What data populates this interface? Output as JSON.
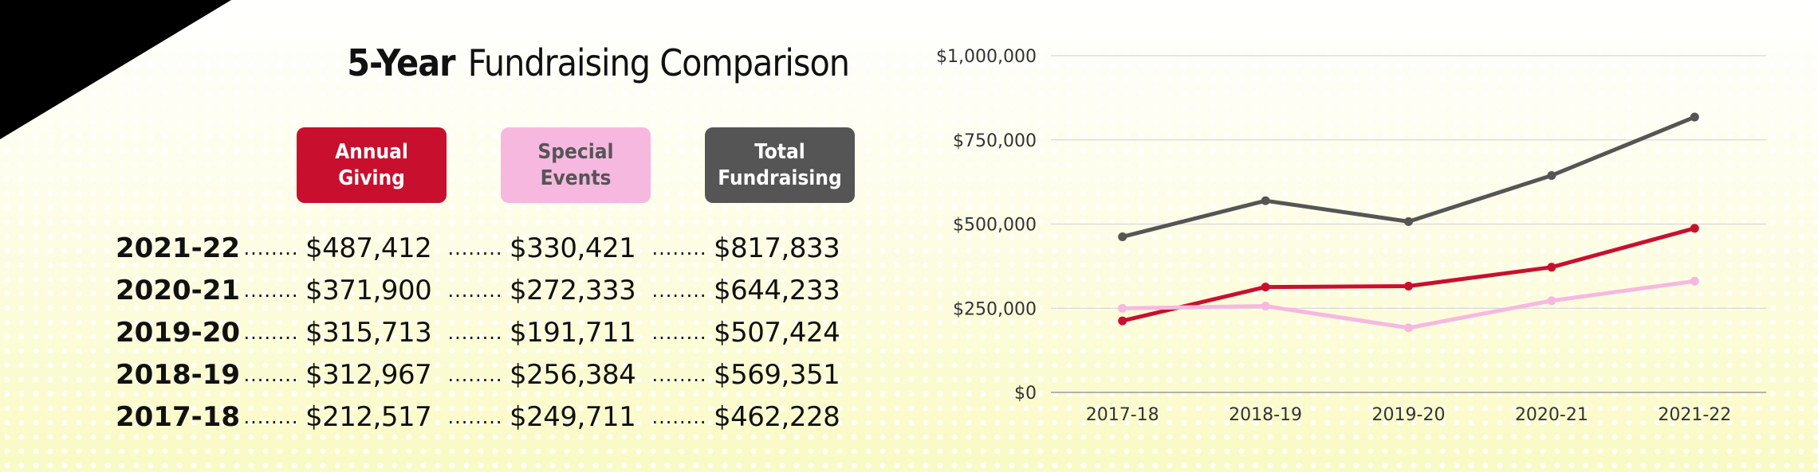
{
  "title": {
    "bold": "5-Year",
    "rest": "Fundraising Comparison"
  },
  "legend": [
    {
      "label": "Annual Giving",
      "bg": "#c8102e",
      "fg": "#ffffff"
    },
    {
      "label": "Special Events",
      "bg": "#f7b8e0",
      "fg": "#555555"
    },
    {
      "label": "Total Fundraising",
      "bg": "#555555",
      "fg": "#ffffff"
    }
  ],
  "dots": "........",
  "table": [
    {
      "year": "2021-22",
      "annual": "$487,412",
      "special": "$330,421",
      "total": "$817,833"
    },
    {
      "year": "2020-21",
      "annual": "$371,900",
      "special": "$272,333",
      "total": "$644,233"
    },
    {
      "year": "2019-20",
      "annual": "$315,713",
      "special": "$191,711",
      "total": "$507,424"
    },
    {
      "year": "2018-19",
      "annual": "$312,967",
      "special": "$256,384",
      "total": "$569,351"
    },
    {
      "year": "2017-18",
      "annual": "$212,517",
      "special": "$249,711",
      "total": "$462,228"
    }
  ],
  "chart_data": {
    "type": "line",
    "categories": [
      "2017-18",
      "2018-19",
      "2019-20",
      "2020-21",
      "2021-22"
    ],
    "y_ticks": [
      "$0",
      "$250,000",
      "$500,000",
      "$750,000",
      "$1,000,000"
    ],
    "ylim": [
      0,
      1000000
    ],
    "grid": true,
    "series": [
      {
        "color": "#555555",
        "values": [
          462228,
          569351,
          507424,
          644233,
          817833
        ]
      },
      {
        "color": "#c8102e",
        "values": [
          212517,
          312967,
          315713,
          371900,
          487412
        ]
      },
      {
        "color": "#f7b8e0",
        "values": [
          249711,
          256384,
          191711,
          272333,
          330421
        ]
      }
    ]
  }
}
